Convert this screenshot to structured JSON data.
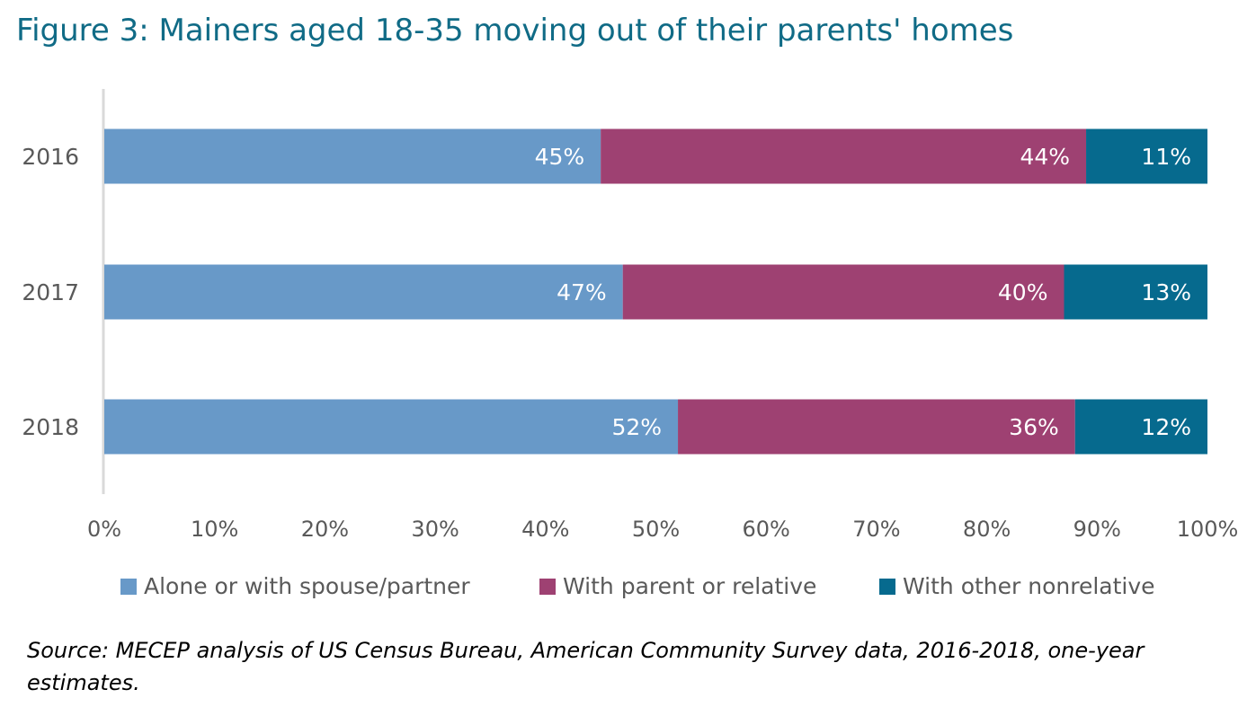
{
  "title": "Figure 3: Mainers aged 18-35 moving out of their parents' homes",
  "chart_data": {
    "type": "bar",
    "orientation": "horizontal",
    "stacked": true,
    "categories": [
      "2016",
      "2017",
      "2018"
    ],
    "series": [
      {
        "name": "Alone or with spouse/partner",
        "color": "#6899c8",
        "values": [
          45,
          47,
          52
        ],
        "labels": [
          "45%",
          "47%",
          "52%"
        ]
      },
      {
        "name": "With parent or relative",
        "color": "#9e4172",
        "values": [
          44,
          40,
          36
        ],
        "labels": [
          "44%",
          "40%",
          "36%"
        ]
      },
      {
        "name": "With other nonrelative",
        "color": "#066a8e",
        "values": [
          11,
          13,
          12
        ],
        "labels": [
          "11%",
          "13%",
          "12%"
        ]
      }
    ],
    "xlim": [
      0,
      100
    ],
    "xticks": [
      "0%",
      "10%",
      "20%",
      "30%",
      "40%",
      "50%",
      "60%",
      "70%",
      "80%",
      "90%",
      "100%"
    ],
    "grid": false,
    "legend_position": "bottom"
  },
  "source": "Source: MECEP analysis of US Census Bureau, American Community Survey data, 2016-2018, one-year estimates."
}
